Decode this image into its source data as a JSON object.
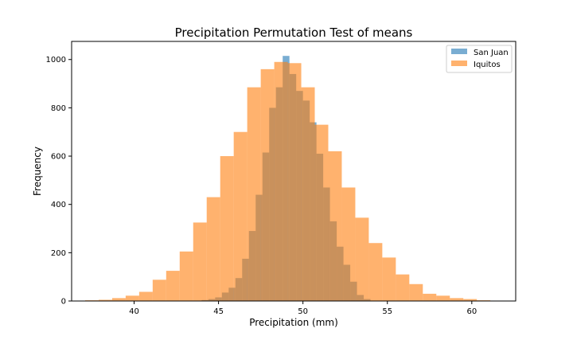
{
  "chart_data": {
    "type": "histogram",
    "title": "Precipitation Permutation Test of means",
    "xlabel": "Precipitation (mm)",
    "ylabel": "Frequency",
    "xlim": [
      36.3,
      62.6
    ],
    "ylim": [
      0,
      1075
    ],
    "xticks": [
      40,
      45,
      50,
      55,
      60
    ],
    "yticks": [
      0,
      200,
      400,
      600,
      800,
      1000
    ],
    "legend_position": "upper right",
    "series": [
      {
        "name": "San Juan",
        "color": "#1f77b4",
        "alpha": 0.6,
        "bin_edges": [
          44.0,
          44.4,
          44.8,
          45.2,
          45.6,
          46.0,
          46.4,
          46.8,
          47.2,
          47.6,
          48.0,
          48.4,
          48.8,
          49.2,
          49.6,
          50.0,
          50.4,
          50.8,
          51.2,
          51.6,
          52.0,
          52.4,
          52.8,
          53.2,
          53.6,
          54.0
        ],
        "counts": [
          4,
          8,
          15,
          35,
          55,
          95,
          175,
          290,
          440,
          615,
          800,
          885,
          1015,
          940,
          870,
          830,
          740,
          610,
          470,
          330,
          225,
          150,
          80,
          25,
          8
        ]
      },
      {
        "name": "Iquitos",
        "color": "#ff7f0e",
        "alpha": 0.6,
        "bin_edges": [
          37.1,
          37.9,
          38.7,
          39.5,
          40.3,
          41.1,
          41.9,
          42.7,
          43.5,
          44.3,
          45.1,
          45.9,
          46.7,
          47.5,
          48.3,
          49.1,
          49.9,
          50.7,
          51.5,
          52.3,
          53.1,
          53.9,
          54.7,
          55.5,
          56.3,
          57.1,
          57.9,
          58.7,
          59.5,
          60.3,
          61.1
        ],
        "counts": [
          3,
          5,
          12,
          22,
          38,
          88,
          125,
          205,
          325,
          430,
          600,
          700,
          885,
          960,
          990,
          985,
          885,
          730,
          620,
          470,
          345,
          240,
          180,
          110,
          70,
          30,
          22,
          12,
          8,
          3
        ]
      }
    ]
  }
}
